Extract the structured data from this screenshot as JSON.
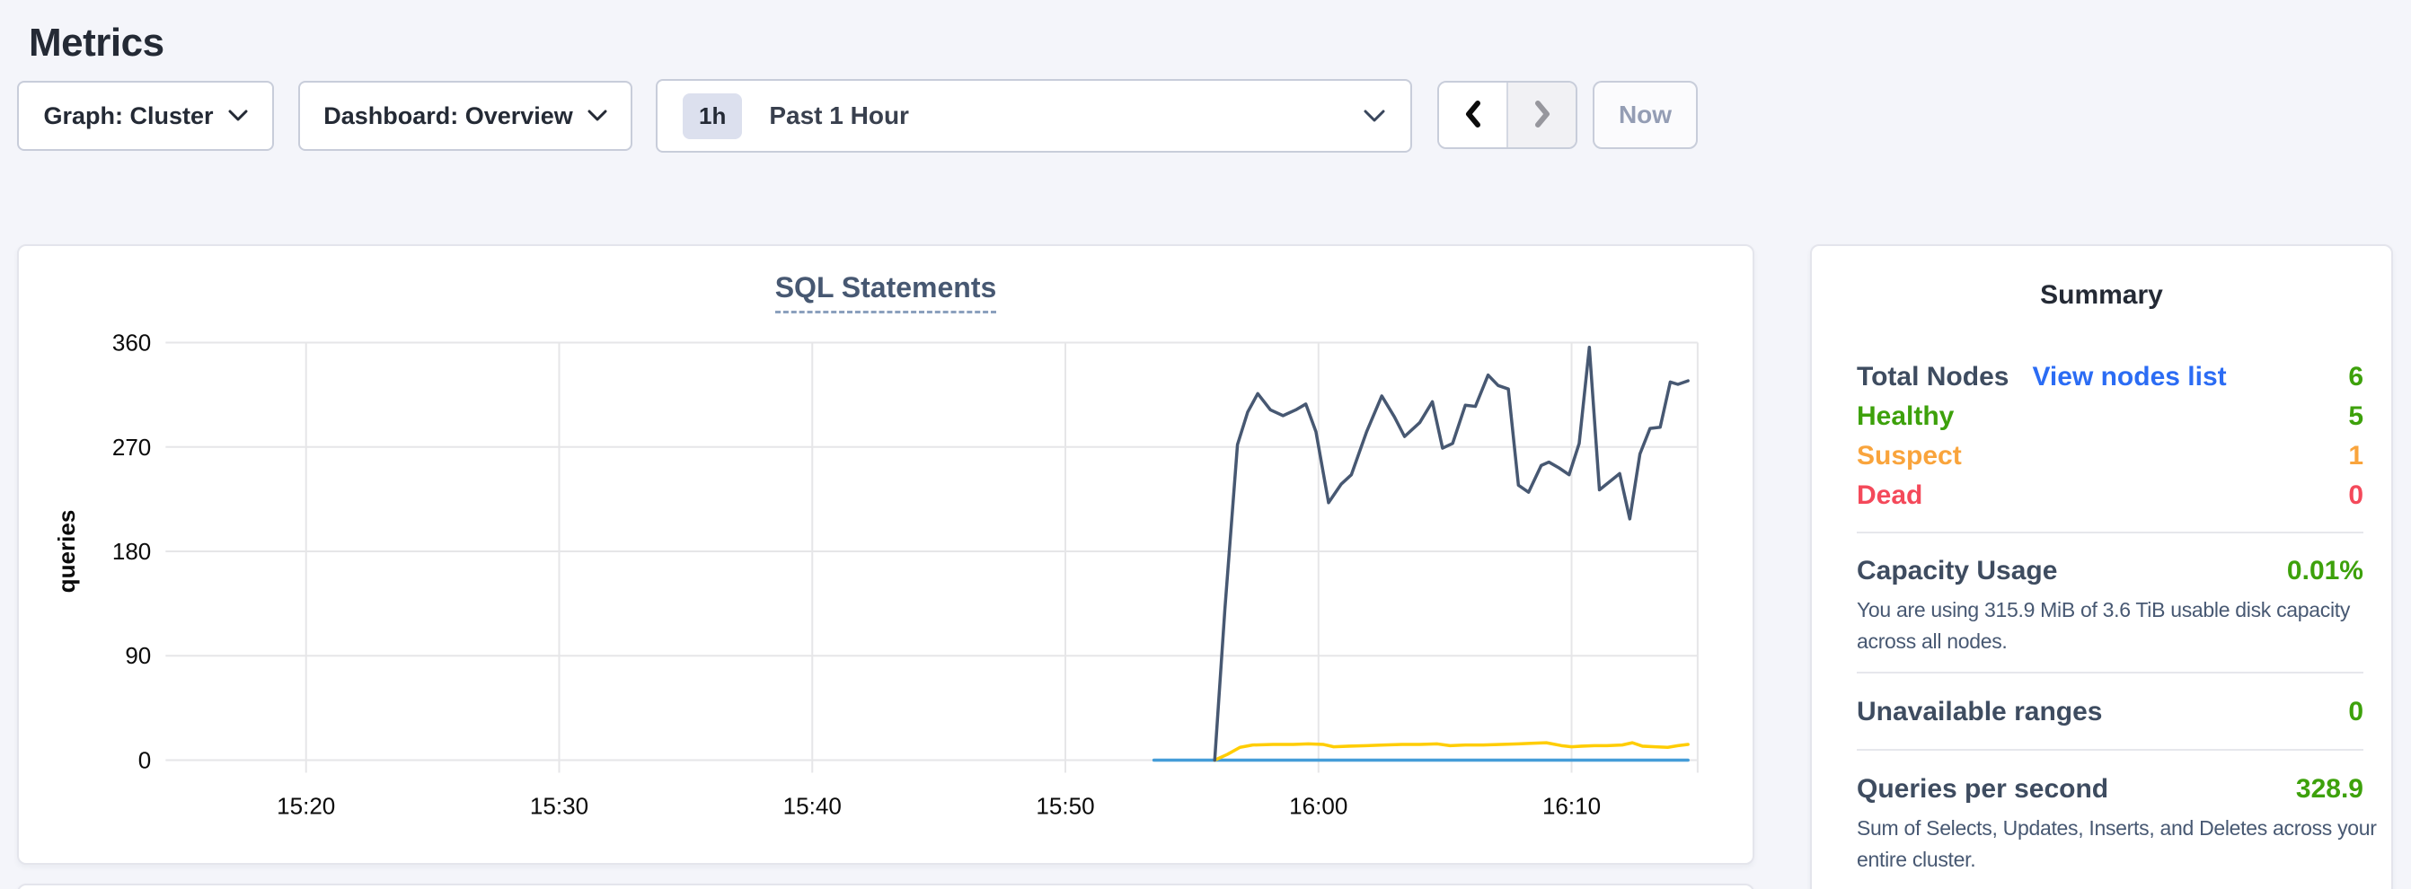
{
  "page": {
    "title": "Metrics",
    "background": "#f4f5fa"
  },
  "toolbar": {
    "graph_dropdown": {
      "label": "Graph: Cluster"
    },
    "dashboard_dropdown": {
      "label": "Dashboard: Overview"
    },
    "time_selector": {
      "badge": "1h",
      "label": "Past 1 Hour"
    },
    "pager": {
      "prev_icon": "chevron-left-icon",
      "next_icon": "chevron-right-icon"
    },
    "now_button": "Now"
  },
  "summary": {
    "title": "Summary",
    "node_rows": [
      {
        "label": "Total Nodes",
        "link": "View nodes list",
        "value": "6",
        "label_color": "#3e4c60",
        "value_color": "#3da10b",
        "link_color": "#2b6cf4"
      },
      {
        "label": "Healthy",
        "value": "5",
        "label_color": "#3da10b",
        "value_color": "#3da10b"
      },
      {
        "label": "Suspect",
        "value": "1",
        "label_color": "#f9a43c",
        "value_color": "#f9a43c"
      },
      {
        "label": "Dead",
        "value": "0",
        "label_color": "#f4495a",
        "value_color": "#f4495a"
      }
    ],
    "sections": [
      {
        "label": "Capacity Usage",
        "value": "0.01%",
        "caption": "You are using 315.9 MiB of 3.6 TiB usable disk capacity across all nodes."
      },
      {
        "label": "Unavailable ranges",
        "value": "0",
        "caption": ""
      },
      {
        "label": "Queries per second",
        "value": "328.9",
        "caption": "Sum of Selects, Updates, Inserts, and Deletes across your entire cluster."
      }
    ],
    "section_label_color": "#3e4c60",
    "section_value_color": "#3da10b"
  },
  "chart_data": {
    "type": "line",
    "title": "SQL Statements",
    "xlabel": "",
    "ylabel": "queries",
    "x_unit": "minutes after 15:00",
    "xlim": [
      14.45,
      74.98
    ],
    "ylim": [
      0,
      360
    ],
    "grid": true,
    "legend": "none",
    "x_ticks": [
      {
        "t": 20,
        "label": "15:20"
      },
      {
        "t": 30,
        "label": "15:30"
      },
      {
        "t": 40,
        "label": "15:40"
      },
      {
        "t": 50,
        "label": "15:50"
      },
      {
        "t": 60,
        "label": "16:00"
      },
      {
        "t": 70,
        "label": "16:10"
      }
    ],
    "y_ticks": [
      0,
      90,
      180,
      270,
      360
    ],
    "series": [
      {
        "name": "flat-zero-line",
        "color": "#459dd8",
        "points": [
          [
            53.5,
            0
          ],
          [
            74.6,
            0
          ]
        ]
      },
      {
        "name": "yellow-line",
        "color": "#ffcd02",
        "points": [
          [
            55.9,
            0
          ],
          [
            56.4,
            5
          ],
          [
            56.9,
            11
          ],
          [
            57.4,
            13
          ],
          [
            58.2,
            13.5
          ],
          [
            59.0,
            13.5
          ],
          [
            59.6,
            14
          ],
          [
            60.2,
            13.5
          ],
          [
            60.6,
            11.5
          ],
          [
            61.2,
            12
          ],
          [
            61.9,
            12.5
          ],
          [
            62.6,
            13
          ],
          [
            63.3,
            13.5
          ],
          [
            64.0,
            13.5
          ],
          [
            64.7,
            14
          ],
          [
            65.2,
            12.5
          ],
          [
            65.8,
            13
          ],
          [
            66.5,
            13
          ],
          [
            67.2,
            13.5
          ],
          [
            67.9,
            14
          ],
          [
            68.4,
            14.5
          ],
          [
            69.0,
            15
          ],
          [
            69.6,
            12.5
          ],
          [
            70.0,
            11.5
          ],
          [
            70.4,
            12
          ],
          [
            70.9,
            12.5
          ],
          [
            71.4,
            12.5
          ],
          [
            72.0,
            13
          ],
          [
            72.4,
            15
          ],
          [
            72.8,
            12
          ],
          [
            73.3,
            11.5
          ],
          [
            73.8,
            11
          ],
          [
            74.2,
            12.5
          ],
          [
            74.6,
            13.5
          ]
        ]
      },
      {
        "name": "navy-line",
        "color": "#475872",
        "points": [
          [
            55.9,
            0
          ],
          [
            56.3,
            130
          ],
          [
            56.8,
            272
          ],
          [
            57.2,
            300
          ],
          [
            57.6,
            316
          ],
          [
            58.1,
            302
          ],
          [
            58.6,
            297
          ],
          [
            59.1,
            302
          ],
          [
            59.5,
            307
          ],
          [
            59.9,
            283
          ],
          [
            60.4,
            222
          ],
          [
            60.9,
            238
          ],
          [
            61.3,
            246
          ],
          [
            61.9,
            283
          ],
          [
            62.5,
            314
          ],
          [
            63.0,
            296
          ],
          [
            63.4,
            279
          ],
          [
            64.0,
            291
          ],
          [
            64.5,
            309
          ],
          [
            64.9,
            269
          ],
          [
            65.3,
            273
          ],
          [
            65.8,
            306
          ],
          [
            66.2,
            305
          ],
          [
            66.7,
            332
          ],
          [
            67.1,
            323
          ],
          [
            67.5,
            320
          ],
          [
            67.9,
            237
          ],
          [
            68.3,
            231
          ],
          [
            68.8,
            254
          ],
          [
            69.1,
            257
          ],
          [
            69.5,
            252
          ],
          [
            69.9,
            246
          ],
          [
            70.3,
            273
          ],
          [
            70.7,
            356
          ],
          [
            71.1,
            233
          ],
          [
            71.5,
            240
          ],
          [
            71.9,
            247
          ],
          [
            72.3,
            208
          ],
          [
            72.7,
            264
          ],
          [
            73.1,
            286
          ],
          [
            73.5,
            287
          ],
          [
            73.9,
            326
          ],
          [
            74.2,
            324
          ],
          [
            74.6,
            327
          ]
        ]
      }
    ]
  }
}
